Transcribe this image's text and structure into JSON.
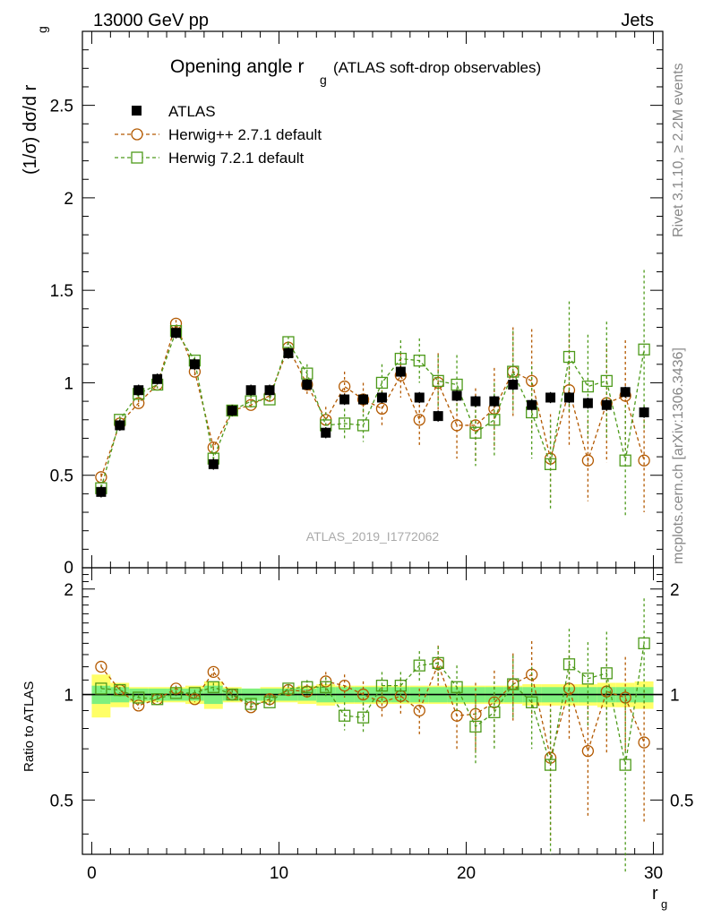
{
  "header": {
    "energy_label": "13000 GeV pp",
    "process_label": "Jets"
  },
  "side_labels": {
    "rivet": "Rivet 3.1.10, ≥ 2.2M events",
    "mcplots": "mcplots.cern.ch [arXiv:1306.3436]"
  },
  "analysis_id": "ATLAS_2019_I1772062",
  "chart_data": [
    {
      "type": "scatter",
      "panel": "main",
      "title_main": "Opening angle r",
      "title_sub": "g",
      "title_rest": "(ATLAS soft-drop observables)",
      "ylabel": "(1/σ) dσ/d r",
      "ylabel_sub": "g",
      "xlim": [
        -0.5,
        30.5
      ],
      "ylim": [
        0,
        2.9
      ],
      "yticks": [
        0.5,
        1,
        1.5,
        2,
        2.5
      ],
      "ytick_labels": [
        "0.5",
        "1",
        "1.5",
        "2",
        "2.5"
      ],
      "y_zero_label": "0",
      "legend_position": "top-left",
      "x": [
        0.5,
        1.5,
        2.5,
        3.5,
        4.5,
        5.5,
        6.5,
        7.5,
        8.5,
        9.5,
        10.5,
        11.5,
        12.5,
        13.5,
        14.5,
        15.5,
        16.5,
        17.5,
        18.5,
        19.5,
        20.5,
        21.5,
        22.5,
        23.5,
        24.5,
        25.5,
        26.5,
        27.5,
        28.5,
        29.5
      ],
      "series": [
        {
          "name": "ATLAS",
          "marker": "filled-square",
          "color": "#000000",
          "values": [
            0.41,
            0.77,
            0.96,
            1.02,
            1.27,
            1.1,
            0.56,
            0.85,
            0.96,
            0.96,
            1.16,
            0.99,
            0.73,
            0.91,
            0.91,
            0.92,
            1.06,
            0.92,
            0.82,
            0.93,
            0.9,
            0.9,
            0.99,
            0.88,
            0.92,
            0.92,
            0.89,
            0.88,
            0.95,
            0.84
          ],
          "errors": [
            0.03,
            0.03,
            0.03,
            0.03,
            0.03,
            0.03,
            0.03,
            0.03,
            0.03,
            0.03,
            0.03,
            0.03,
            0.03,
            0.03,
            0.03,
            0.03,
            0.03,
            0.03,
            0.03,
            0.03,
            0.03,
            0.03,
            0.03,
            0.03,
            0.03,
            0.03,
            0.03,
            0.03,
            0.03,
            0.03
          ]
        },
        {
          "name": "Herwig++ 2.7.1 default",
          "marker": "open-circle",
          "color": "#b35900",
          "values": [
            0.49,
            0.78,
            0.89,
            0.99,
            1.32,
            1.06,
            0.65,
            0.85,
            0.88,
            0.93,
            1.19,
            0.99,
            0.8,
            0.98,
            0.91,
            0.86,
            1.04,
            0.8,
            1.0,
            0.77,
            0.77,
            0.86,
            1.06,
            1.01,
            0.59,
            0.96,
            0.58,
            0.89,
            0.93,
            0.58
          ],
          "errors": [
            0.02,
            0.02,
            0.02,
            0.02,
            0.02,
            0.02,
            0.03,
            0.03,
            0.03,
            0.03,
            0.03,
            0.05,
            0.07,
            0.08,
            0.09,
            0.1,
            0.12,
            0.14,
            0.16,
            0.18,
            0.2,
            0.22,
            0.24,
            0.28,
            0.24,
            0.3,
            0.22,
            0.32,
            0.3,
            0.28
          ]
        },
        {
          "name": "Herwig 7.2.1 default",
          "marker": "open-square",
          "color": "#4d9a1a",
          "values": [
            0.43,
            0.8,
            0.94,
            0.99,
            1.28,
            1.12,
            0.59,
            0.85,
            0.9,
            0.91,
            1.22,
            1.05,
            0.77,
            0.78,
            0.77,
            1.0,
            1.13,
            1.12,
            1.01,
            0.99,
            0.73,
            0.8,
            1.06,
            0.84,
            0.56,
            1.14,
            0.98,
            1.01,
            0.58,
            1.18
          ],
          "errors": [
            0.02,
            0.02,
            0.02,
            0.02,
            0.02,
            0.02,
            0.03,
            0.03,
            0.03,
            0.03,
            0.03,
            0.05,
            0.07,
            0.08,
            0.09,
            0.1,
            0.1,
            0.12,
            0.14,
            0.16,
            0.18,
            0.2,
            0.22,
            0.25,
            0.24,
            0.3,
            0.28,
            0.32,
            0.3,
            0.43
          ]
        }
      ]
    },
    {
      "type": "scatter",
      "panel": "ratio",
      "ylabel": "Ratio to ATLAS",
      "xlabel": "r",
      "xlabel_sub": "g",
      "xlim": [
        -0.5,
        30.5
      ],
      "ylim": [
        0.35,
        2.3
      ],
      "yticks": [
        0.5,
        1,
        2
      ],
      "ytick_labels": [
        "0.5",
        "1",
        "2"
      ],
      "xticks": [
        0,
        10,
        20,
        30
      ],
      "xtick_labels": [
        "0",
        "10",
        "20",
        "30"
      ],
      "band_colors": {
        "stat": "#7ef07e",
        "total": "#ffff66"
      },
      "band_stat": [
        0.06,
        0.05,
        0.04,
        0.04,
        0.04,
        0.04,
        0.06,
        0.04,
        0.04,
        0.04,
        0.04,
        0.04,
        0.05,
        0.05,
        0.05,
        0.05,
        0.05,
        0.05,
        0.05,
        0.05,
        0.05,
        0.05,
        0.05,
        0.05,
        0.05,
        0.05,
        0.05,
        0.05,
        0.05,
        0.05
      ],
      "band_total": [
        0.14,
        0.08,
        0.05,
        0.05,
        0.05,
        0.06,
        0.09,
        0.05,
        0.04,
        0.05,
        0.05,
        0.06,
        0.07,
        0.06,
        0.06,
        0.06,
        0.06,
        0.06,
        0.06,
        0.06,
        0.06,
        0.06,
        0.06,
        0.07,
        0.07,
        0.07,
        0.07,
        0.08,
        0.08,
        0.09
      ],
      "series": [
        {
          "name": "Herwig++ 2.7.1 default",
          "marker": "open-circle",
          "color": "#b35900",
          "values": [
            1.2,
            1.03,
            0.93,
            0.97,
            1.04,
            0.97,
            1.16,
            1.0,
            0.92,
            0.97,
            1.03,
            1.02,
            1.09,
            1.06,
            1.0,
            0.95,
            0.99,
            0.9,
            1.22,
            0.87,
            0.88,
            0.95,
            1.07,
            1.14,
            0.66,
            1.04,
            0.69,
            1.02,
            0.98,
            0.73
          ],
          "errors": [
            0.02,
            0.02,
            0.02,
            0.02,
            0.02,
            0.02,
            0.03,
            0.03,
            0.03,
            0.03,
            0.03,
            0.05,
            0.07,
            0.08,
            0.09,
            0.1,
            0.12,
            0.14,
            0.16,
            0.18,
            0.2,
            0.22,
            0.24,
            0.28,
            0.28,
            0.3,
            0.24,
            0.34,
            0.3,
            0.3
          ]
        },
        {
          "name": "Herwig 7.2.1 default",
          "marker": "open-square",
          "color": "#4d9a1a",
          "values": [
            1.04,
            1.03,
            0.98,
            0.97,
            1.01,
            1.01,
            1.05,
            1.0,
            0.94,
            0.95,
            1.04,
            1.05,
            1.05,
            0.87,
            0.86,
            1.06,
            1.06,
            1.21,
            1.23,
            1.05,
            0.81,
            0.89,
            1.07,
            0.95,
            0.63,
            1.22,
            1.11,
            1.15,
            0.63,
            1.4
          ],
          "errors": [
            0.02,
            0.02,
            0.02,
            0.02,
            0.02,
            0.02,
            0.03,
            0.03,
            0.03,
            0.03,
            0.03,
            0.05,
            0.07,
            0.08,
            0.09,
            0.1,
            0.1,
            0.12,
            0.14,
            0.16,
            0.18,
            0.2,
            0.22,
            0.25,
            0.28,
            0.32,
            0.3,
            0.36,
            0.32,
            0.48
          ]
        }
      ]
    }
  ]
}
